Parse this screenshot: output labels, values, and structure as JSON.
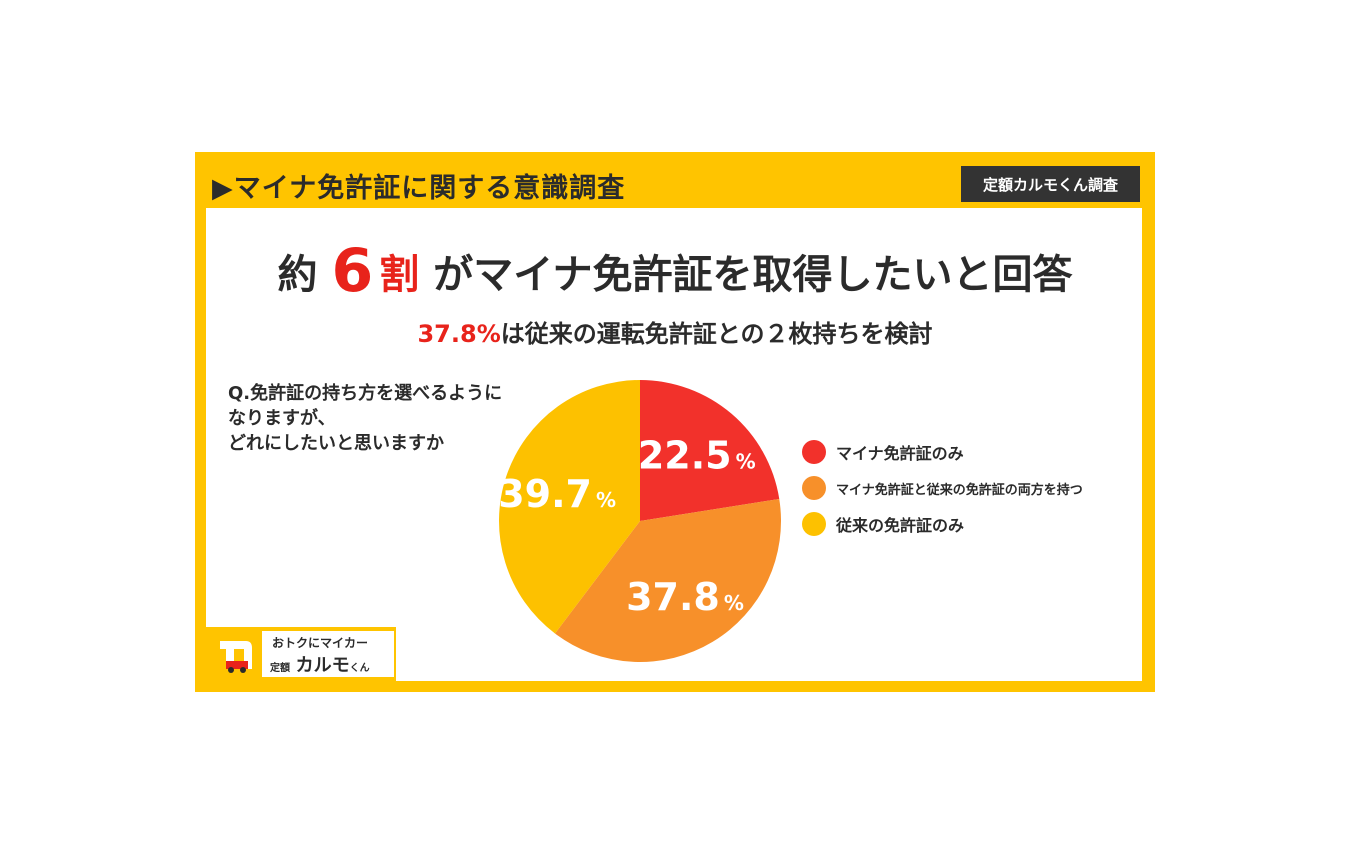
{
  "header": {
    "title": "▶マイナ免許証に関する意識調査",
    "badge": "定額カルモくん調査"
  },
  "headline": {
    "pre": "約",
    "number": "6",
    "unit": "割",
    "post": "がマイナ免許証を取得したいと回答"
  },
  "subline": {
    "highlight": "37.8%",
    "rest": "は従来の運転免許証との２枚持ちを検討"
  },
  "question": {
    "lines": [
      "Q.免許証の持ち方を選べるように",
      "なりますが、",
      "どれにしたいと思いますか"
    ]
  },
  "chart_data": {
    "type": "pie",
    "unit": "%",
    "slices": [
      {
        "label": "マイナ免許証のみ",
        "value": 22.5,
        "display": "22.5",
        "color": "#f2312b"
      },
      {
        "label": "マイナ免許証と従来の免許証の両方を持つ",
        "value": 37.8,
        "display": "37.8",
        "color": "#f7902a"
      },
      {
        "label": "従来の免許証のみ",
        "value": 39.7,
        "display": "39.7",
        "color": "#fdc100"
      }
    ],
    "legend_position": "right"
  },
  "logo": {
    "tagline": "おトクにマイカー",
    "prefix": "定額",
    "name": "カルモ",
    "suffix": "くん",
    "mark": "カ"
  },
  "colors": {
    "frame": "#ffc400",
    "accent_red": "#e8231b",
    "text": "#2b2b2b",
    "badge_bg": "#333333"
  }
}
